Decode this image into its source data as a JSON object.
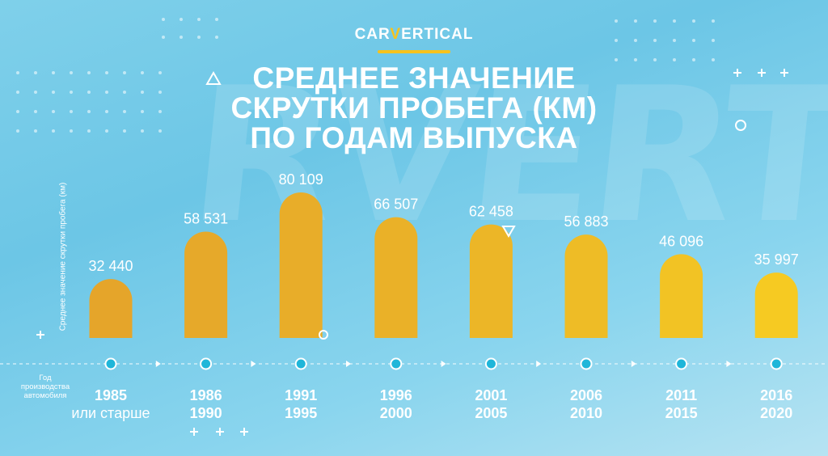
{
  "brand": {
    "logo_prefix": "CAR",
    "logo_accent": "V",
    "logo_suffix": "ERTICAL",
    "accent_color": "#f7c21b"
  },
  "title_lines": [
    "СРЕДНЕЕ ЗНАЧЕНИЕ",
    "СКРУТКИ ПРОБЕГА (КМ)",
    "ПО ГОДАМ ВЫПУСКА"
  ],
  "watermark_text": "RVERT",
  "chart_data": {
    "type": "bar",
    "title": "СРЕДНЕЕ ЗНАЧЕНИЕ СКРУТКИ ПРОБЕГА (КМ) ПО ГОДАМ ВЫПУСКА",
    "ylabel": "Среднее значение скрутки пробега (км)",
    "xlabel": "Год производства автомобиля",
    "categories": [
      [
        "1985",
        "или старше"
      ],
      [
        "1986",
        "1990"
      ],
      [
        "1991",
        "1995"
      ],
      [
        "1996",
        "2000"
      ],
      [
        "2001",
        "2005"
      ],
      [
        "2006",
        "2010"
      ],
      [
        "2011",
        "2015"
      ],
      [
        "2016",
        "2020"
      ]
    ],
    "values": [
      32440,
      58531,
      80109,
      66507,
      62458,
      56883,
      46096,
      35997
    ],
    "value_labels": [
      "32 440",
      "58 531",
      "80 109",
      "66 507",
      "62 458",
      "56 883",
      "46 096",
      "35 997"
    ],
    "bar_colors": [
      "#e5a52a",
      "#e6a92a",
      "#e8ad29",
      "#eab128",
      "#ecb627",
      "#eebc26",
      "#f2c324",
      "#f6ca22"
    ],
    "ylim": [
      0,
      80109
    ],
    "grid": false,
    "legend": "none"
  }
}
